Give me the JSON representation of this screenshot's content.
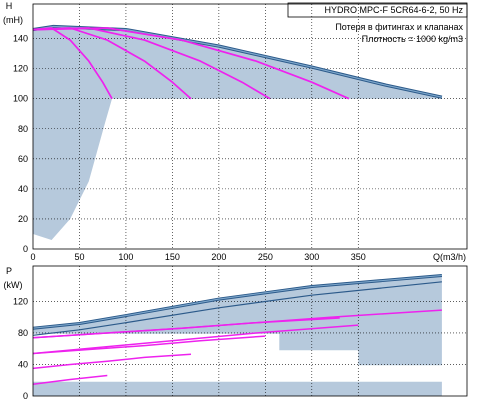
{
  "colors": {
    "envelope_fill": "#b6c9dc",
    "envelope_line": "#2c5a8a",
    "curve_magenta": "#ee22ee",
    "grid": "#000000",
    "background": "#ffffff"
  },
  "info": {
    "title": "HYDRO MPC-F 5CR64-6-2, 50 Hz",
    "line1": "Потеря в фитингах и клапанах",
    "line2": "Плотность = 1000 kg/m3"
  },
  "chart_data": [
    {
      "type": "line",
      "name": "head",
      "y_axis_letter": "H",
      "y_axis_unit": "(mH)",
      "x_axis_unit": "Q(m3/h)",
      "xlim": [
        0,
        467
      ],
      "ylim": [
        0,
        163
      ],
      "x_ticks": [
        0,
        50,
        100,
        150,
        200,
        250,
        300,
        350
      ],
      "y_ticks": [
        0,
        20,
        40,
        60,
        80,
        100,
        120,
        140
      ],
      "grid": true,
      "envelope_upper": [
        [
          0,
          146
        ],
        [
          22,
          148
        ],
        [
          100,
          146
        ],
        [
          200,
          135
        ],
        [
          300,
          121
        ],
        [
          380,
          109
        ],
        [
          440,
          101
        ]
      ],
      "envelope_fill_lower": [
        [
          0,
          10
        ],
        [
          20,
          6
        ],
        [
          40,
          20
        ],
        [
          60,
          45
        ],
        [
          78,
          85
        ],
        [
          85,
          100
        ],
        [
          440,
          100
        ]
      ],
      "series": [
        {
          "values": [
            [
              0,
              146
            ],
            [
              20,
              147
            ],
            [
              40,
              139
            ],
            [
              60,
              125
            ],
            [
              75,
              111
            ],
            [
              85,
              100
            ]
          ]
        },
        {
          "values": [
            [
              0,
              146
            ],
            [
              40,
              147
            ],
            [
              80,
              139
            ],
            [
              120,
              125
            ],
            [
              150,
              111
            ],
            [
              170,
              100
            ]
          ]
        },
        {
          "values": [
            [
              0,
              146
            ],
            [
              60,
              147
            ],
            [
              120,
              139
            ],
            [
              180,
              125
            ],
            [
              225,
              111
            ],
            [
              255,
              100
            ]
          ]
        },
        {
          "values": [
            [
              0,
              146
            ],
            [
              80,
              147
            ],
            [
              160,
              139
            ],
            [
              240,
              125
            ],
            [
              300,
              111
            ],
            [
              340,
              100
            ]
          ]
        }
      ]
    },
    {
      "type": "line",
      "name": "power",
      "y_axis_letter": "P",
      "y_axis_unit": "(kW)",
      "xlim": [
        0,
        467
      ],
      "ylim": [
        0,
        165
      ],
      "y_ticks": [
        0,
        40,
        80,
        120
      ],
      "grid": true,
      "envelope_upper": [
        [
          0,
          86
        ],
        [
          50,
          92
        ],
        [
          100,
          102
        ],
        [
          200,
          123
        ],
        [
          300,
          139
        ],
        [
          440,
          153
        ]
      ],
      "envelope_lower": [
        [
          0,
          77
        ],
        [
          50,
          84
        ],
        [
          100,
          93
        ],
        [
          200,
          112
        ],
        [
          300,
          128
        ],
        [
          440,
          145
        ]
      ],
      "steps": [
        {
          "x0": 0,
          "x1": 440,
          "y": 0
        },
        {
          "x0": 0,
          "x1": 350,
          "y": 39
        },
        {
          "x0": 0,
          "x1": 265,
          "y": 58
        },
        {
          "x0": 0,
          "x1": 180,
          "y": 79
        }
      ],
      "series": [
        {
          "values": [
            [
              0,
              15
            ],
            [
              40,
              21
            ],
            [
              80,
              26
            ]
          ]
        },
        {
          "values": [
            [
              0,
              35
            ],
            [
              40,
              40
            ],
            [
              80,
              44
            ],
            [
              120,
              49
            ],
            [
              170,
              53
            ]
          ]
        },
        {
          "values": [
            [
              0,
              54
            ],
            [
              60,
              59
            ],
            [
              120,
              64
            ],
            [
              180,
              70
            ],
            [
              250,
              76
            ]
          ]
        },
        {
          "values": [
            [
              0,
              74
            ],
            [
              80,
              80
            ],
            [
              160,
              86
            ],
            [
              240,
              93
            ],
            [
              330,
              99
            ]
          ]
        },
        {
          "values": [
            [
              0,
              54
            ],
            [
              120,
              67
            ],
            [
              240,
              80
            ],
            [
              350,
              90
            ]
          ]
        },
        {
          "values": [
            [
              0,
              74
            ],
            [
              160,
              86
            ],
            [
              320,
              100
            ],
            [
              440,
              109
            ]
          ]
        }
      ]
    }
  ]
}
